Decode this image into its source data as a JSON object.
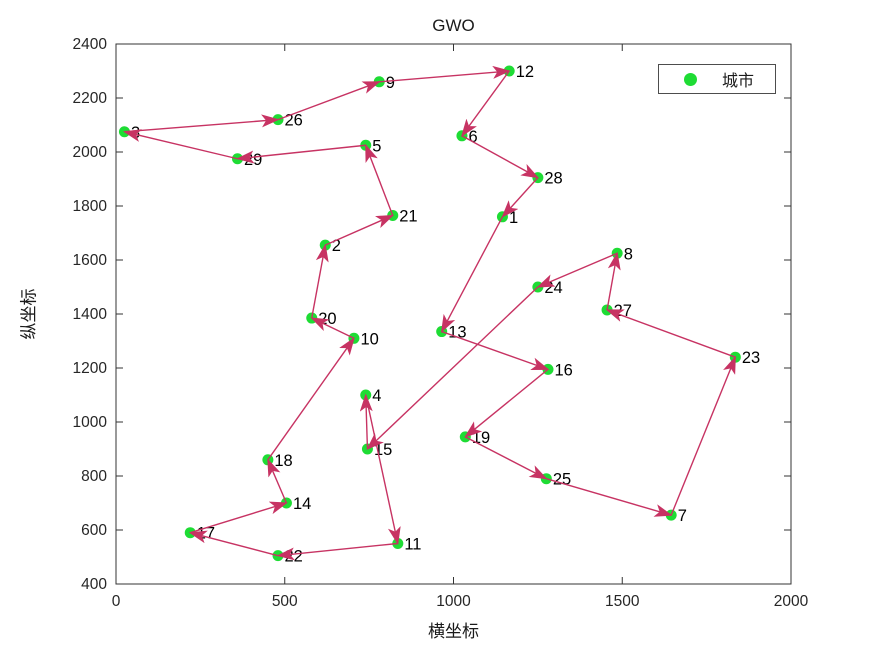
{
  "chart_data": {
    "type": "scatter",
    "title": "GWO",
    "xlabel": "横坐标",
    "ylabel": "纵坐标",
    "xlim": [
      0,
      2000
    ],
    "ylim": [
      400,
      2400
    ],
    "xticks": [
      0,
      500,
      1000,
      1500,
      2000
    ],
    "yticks": [
      400,
      600,
      800,
      1000,
      1200,
      1400,
      1600,
      1800,
      2000,
      2200,
      2400
    ],
    "grid": false,
    "legend": {
      "label": "城市",
      "position": "northeast"
    },
    "colors": {
      "city_marker": "#1EDC34",
      "route_arrow": "#C73363",
      "axis": "#333333",
      "tick_text": "#262626",
      "label_text": "#000000"
    },
    "cities": [
      {
        "id": 1,
        "x": 1145,
        "y": 1760
      },
      {
        "id": 2,
        "x": 620,
        "y": 1655
      },
      {
        "id": 3,
        "x": 25,
        "y": 2075
      },
      {
        "id": 4,
        "x": 740,
        "y": 1100
      },
      {
        "id": 5,
        "x": 740,
        "y": 2025
      },
      {
        "id": 6,
        "x": 1025,
        "y": 2060
      },
      {
        "id": 7,
        "x": 1645,
        "y": 655
      },
      {
        "id": 8,
        "x": 1485,
        "y": 1625
      },
      {
        "id": 9,
        "x": 780,
        "y": 2260
      },
      {
        "id": 10,
        "x": 705,
        "y": 1310
      },
      {
        "id": 11,
        "x": 835,
        "y": 550
      },
      {
        "id": 12,
        "x": 1165,
        "y": 2300
      },
      {
        "id": 13,
        "x": 965,
        "y": 1335
      },
      {
        "id": 14,
        "x": 505,
        "y": 700
      },
      {
        "id": 15,
        "x": 745,
        "y": 900
      },
      {
        "id": 16,
        "x": 1280,
        "y": 1195
      },
      {
        "id": 17,
        "x": 220,
        "y": 590
      },
      {
        "id": 18,
        "x": 450,
        "y": 860
      },
      {
        "id": 19,
        "x": 1035,
        "y": 945
      },
      {
        "id": 20,
        "x": 580,
        "y": 1385
      },
      {
        "id": 21,
        "x": 820,
        "y": 1765
      },
      {
        "id": 22,
        "x": 480,
        "y": 505
      },
      {
        "id": 23,
        "x": 1835,
        "y": 1240
      },
      {
        "id": 24,
        "x": 1250,
        "y": 1500
      },
      {
        "id": 25,
        "x": 1275,
        "y": 790
      },
      {
        "id": 26,
        "x": 480,
        "y": 2120
      },
      {
        "id": 27,
        "x": 1455,
        "y": 1415
      },
      {
        "id": 28,
        "x": 1250,
        "y": 1905
      },
      {
        "id": 29,
        "x": 360,
        "y": 1975
      }
    ],
    "route": [
      3,
      26,
      9,
      12,
      6,
      28,
      1,
      13,
      16,
      19,
      25,
      7,
      23,
      27,
      8,
      24,
      15,
      4,
      11,
      22,
      17,
      14,
      18,
      10,
      20,
      2,
      21,
      5,
      29
    ],
    "route_closed": true
  }
}
